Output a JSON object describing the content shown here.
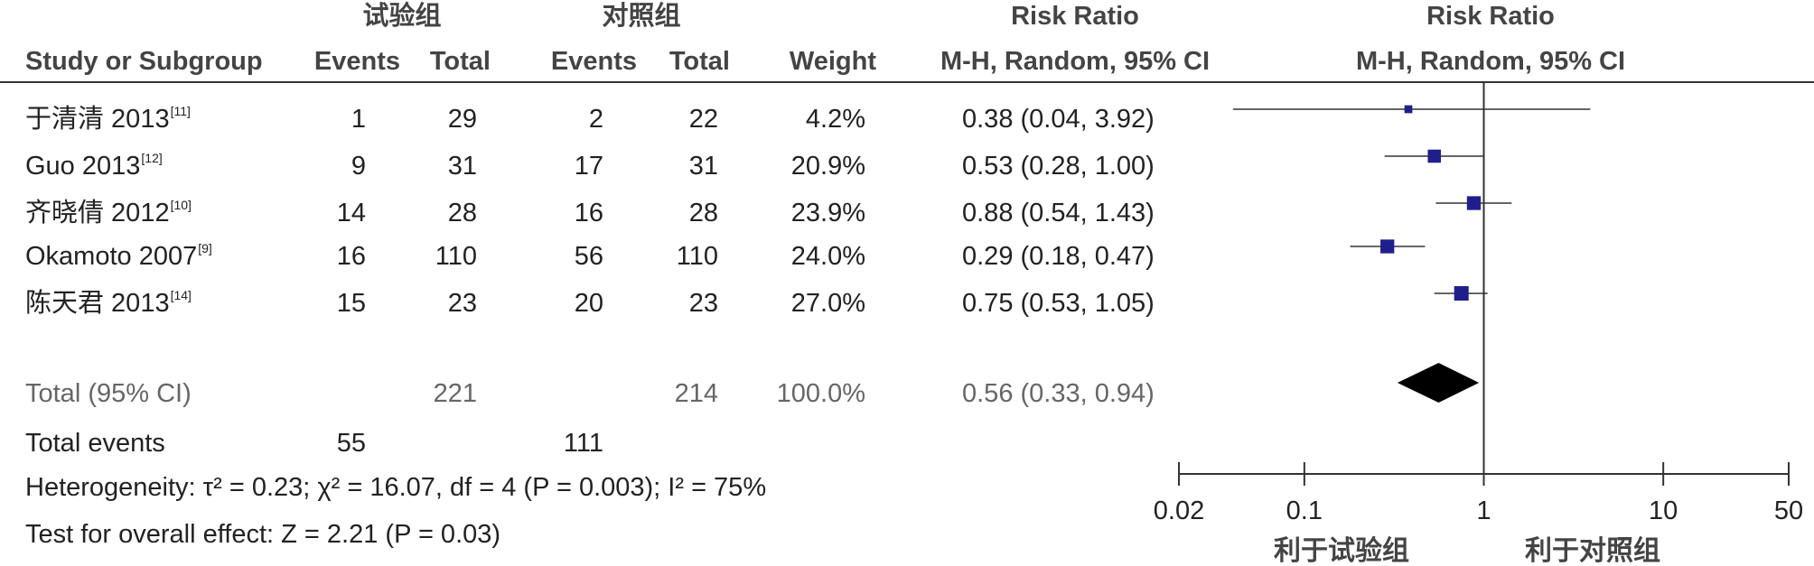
{
  "group_headers": {
    "experimental": "试验组",
    "control": "对照组"
  },
  "columns": {
    "study": "Study or Subgroup",
    "exp_events": "Events",
    "exp_total": "Total",
    "ctrl_events": "Events",
    "ctrl_total": "Total",
    "weight": "Weight",
    "rr_title": "Risk Ratio",
    "rr_method": "M-H, Random, 95% CI",
    "plot_title": "Risk Ratio",
    "plot_method": "M-H, Random, 95% CI"
  },
  "studies": [
    {
      "name": "于清清 2013",
      "ref": "[11]",
      "exp_events": "1",
      "exp_total": "29",
      "ctrl_events": "2",
      "ctrl_total": "22",
      "weight": "4.2%",
      "rr_text": "0.38 (0.04, 3.92)"
    },
    {
      "name": "Guo 2013",
      "ref": "[12]",
      "exp_events": "9",
      "exp_total": "31",
      "ctrl_events": "17",
      "ctrl_total": "31",
      "weight": "20.9%",
      "rr_text": "0.53 (0.28, 1.00)"
    },
    {
      "name": "齐晓倩 2012",
      "ref": "[10]",
      "exp_events": "14",
      "exp_total": "28",
      "ctrl_events": "16",
      "ctrl_total": "28",
      "weight": "23.9%",
      "rr_text": "0.88 (0.54, 1.43)"
    },
    {
      "name": "Okamoto 2007",
      "ref": "[9]",
      "exp_events": "16",
      "exp_total": "110",
      "ctrl_events": "56",
      "ctrl_total": "110",
      "weight": "24.0%",
      "rr_text": "0.29 (0.18, 0.47)"
    },
    {
      "name": "陈天君 2013",
      "ref": "[14]",
      "exp_events": "15",
      "exp_total": "23",
      "ctrl_events": "20",
      "ctrl_total": "23",
      "weight": "27.0%",
      "rr_text": "0.75 (0.53, 1.05)"
    }
  ],
  "total": {
    "label": "Total (95% CI)",
    "exp_total": "221",
    "ctrl_total": "214",
    "weight": "100.0%",
    "rr_text": "0.56 (0.33, 0.94)"
  },
  "total_events": {
    "label": "Total events",
    "exp": "55",
    "ctrl": "111"
  },
  "heterogeneity": "Heterogeneity: τ² = 0.23; χ² = 16.07, df = 4 (P = 0.003); I² = 75%",
  "overall_effect": "Test for overall effect: Z = 2.21 (P = 0.03)",
  "favours": {
    "left": "利于试验组",
    "right": "利于对照组"
  },
  "colors": {
    "marker": "#1f1f8c",
    "diamond": "#000000",
    "line": "#333333"
  },
  "chart_data": {
    "type": "forest",
    "scale": "log",
    "xlim": [
      0.02,
      50
    ],
    "ticks": [
      0.02,
      0.1,
      1,
      10,
      50
    ],
    "tick_labels": [
      "0.02",
      "0.1",
      "1",
      "10",
      "50"
    ],
    "reference_line": 1,
    "studies": [
      {
        "name": "于清清 2013",
        "rr": 0.38,
        "lo": 0.04,
        "hi": 3.92,
        "weight": 4.2
      },
      {
        "name": "Guo 2013",
        "rr": 0.53,
        "lo": 0.28,
        "hi": 1.0,
        "weight": 20.9
      },
      {
        "name": "齐晓倩 2012",
        "rr": 0.88,
        "lo": 0.54,
        "hi": 1.43,
        "weight": 23.9
      },
      {
        "name": "Okamoto 2007",
        "rr": 0.29,
        "lo": 0.18,
        "hi": 0.47,
        "weight": 24.0
      },
      {
        "name": "陈天君 2013",
        "rr": 0.75,
        "lo": 0.53,
        "hi": 1.05,
        "weight": 27.0
      }
    ],
    "pooled": {
      "rr": 0.56,
      "lo": 0.33,
      "hi": 0.94
    }
  }
}
